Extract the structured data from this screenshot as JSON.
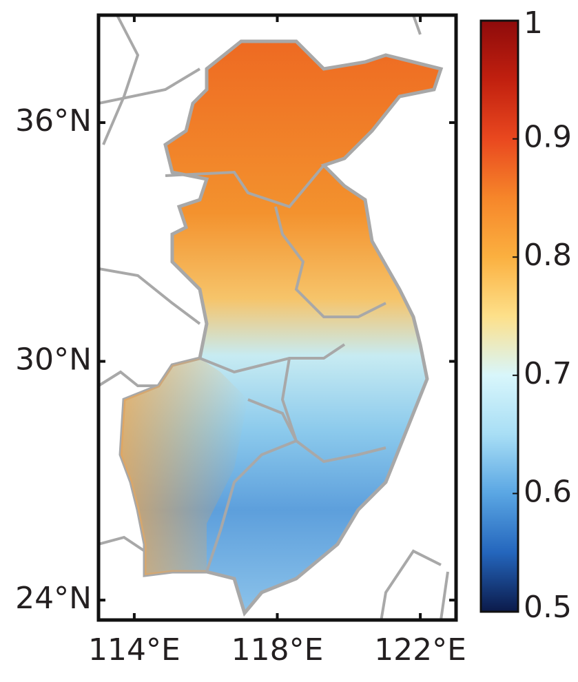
{
  "map": {
    "lonlim": [
      113,
      123
    ],
    "latlim": [
      23.5,
      38.7
    ],
    "lat_ticks": [
      {
        "value": 36,
        "label": "36°N"
      },
      {
        "value": 30,
        "label": "30°N"
      },
      {
        "value": 24,
        "label": "24°N"
      }
    ],
    "lon_ticks": [
      {
        "value": 114,
        "label": "114°E"
      },
      {
        "value": 118,
        "label": "118°E"
      },
      {
        "value": 122,
        "label": "122°E"
      }
    ],
    "colorbar": {
      "lim": [
        0.5,
        1
      ],
      "ticks": [
        1,
        0.9,
        0.8,
        0.7,
        0.6,
        0.5
      ],
      "colors": [
        "#0b1a4a",
        "#2466bd",
        "#5aa6e3",
        "#a8def5",
        "#d8f6fb",
        "#fde08a",
        "#fbb040",
        "#f6862a",
        "#e9481f",
        "#c1200f",
        "#8e0b0b"
      ]
    }
  }
}
